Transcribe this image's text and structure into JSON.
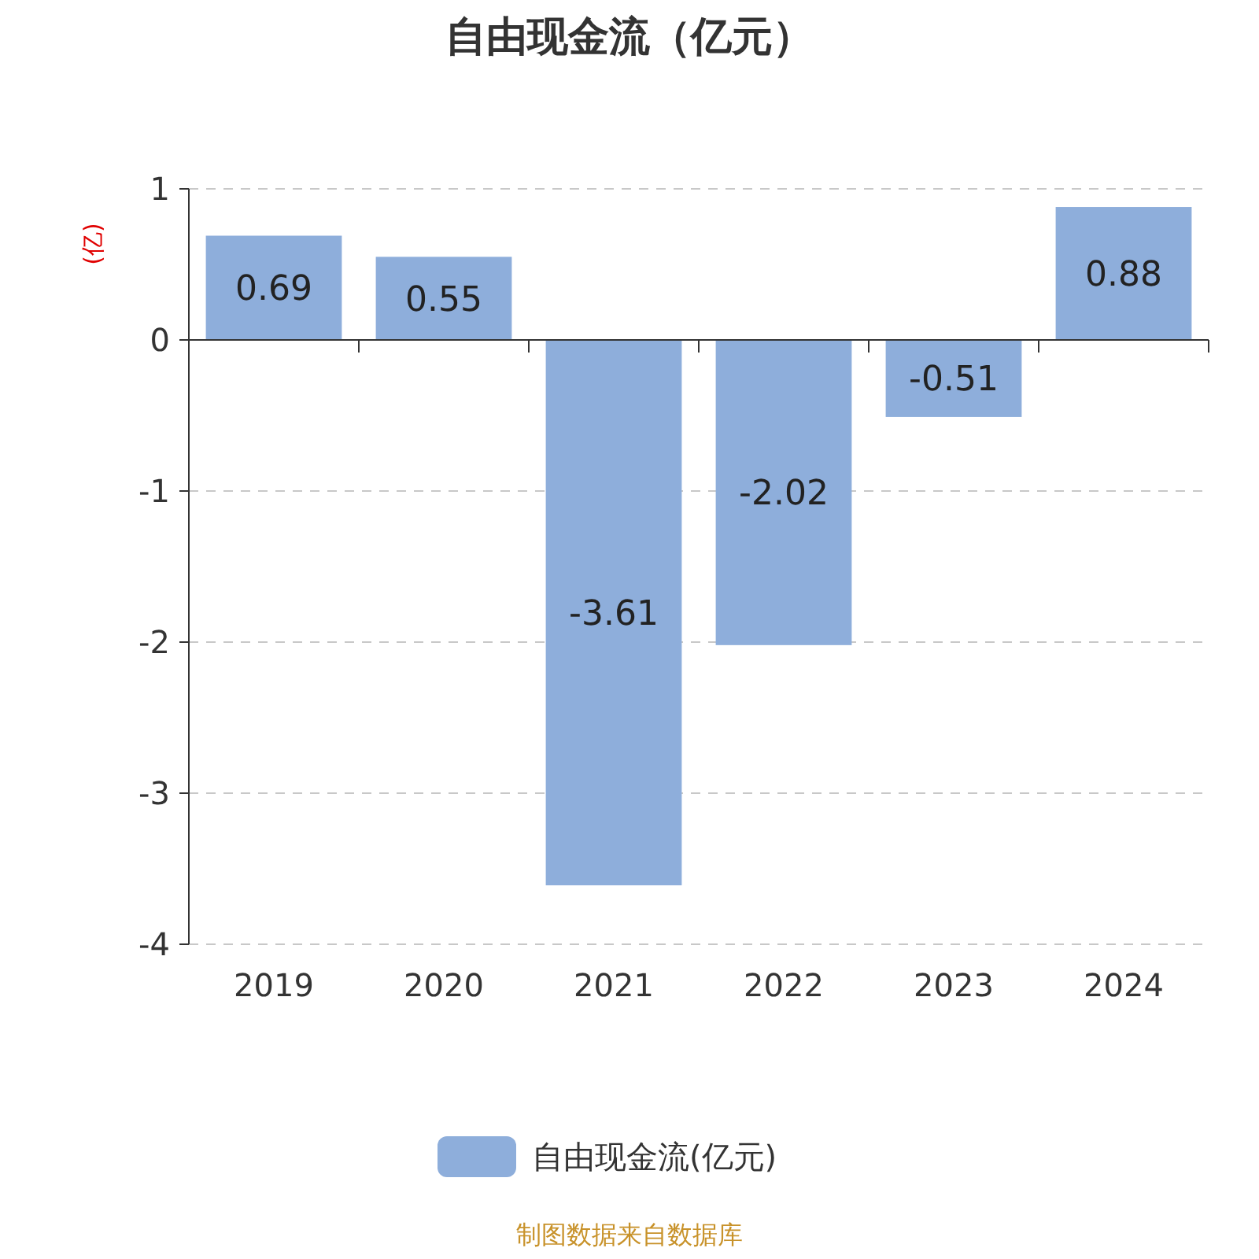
{
  "chart_data": {
    "type": "bar",
    "title": "自由现金流（亿元）",
    "ylabel": "(亿)",
    "categories": [
      "2019",
      "2020",
      "2021",
      "2022",
      "2023",
      "2024"
    ],
    "series": [
      {
        "name": "自由现金流(亿元)",
        "color": "#8eaedb",
        "values": [
          0.69,
          0.55,
          -3.61,
          -2.02,
          -0.51,
          0.88
        ]
      }
    ],
    "ylim": [
      -4,
      1
    ],
    "yticks": [
      -4,
      -3,
      -2,
      -1,
      0,
      1
    ],
    "grid": "y",
    "legend": "bottom",
    "data_labels": true,
    "annotations": [
      "制图数据来自数据库"
    ]
  }
}
